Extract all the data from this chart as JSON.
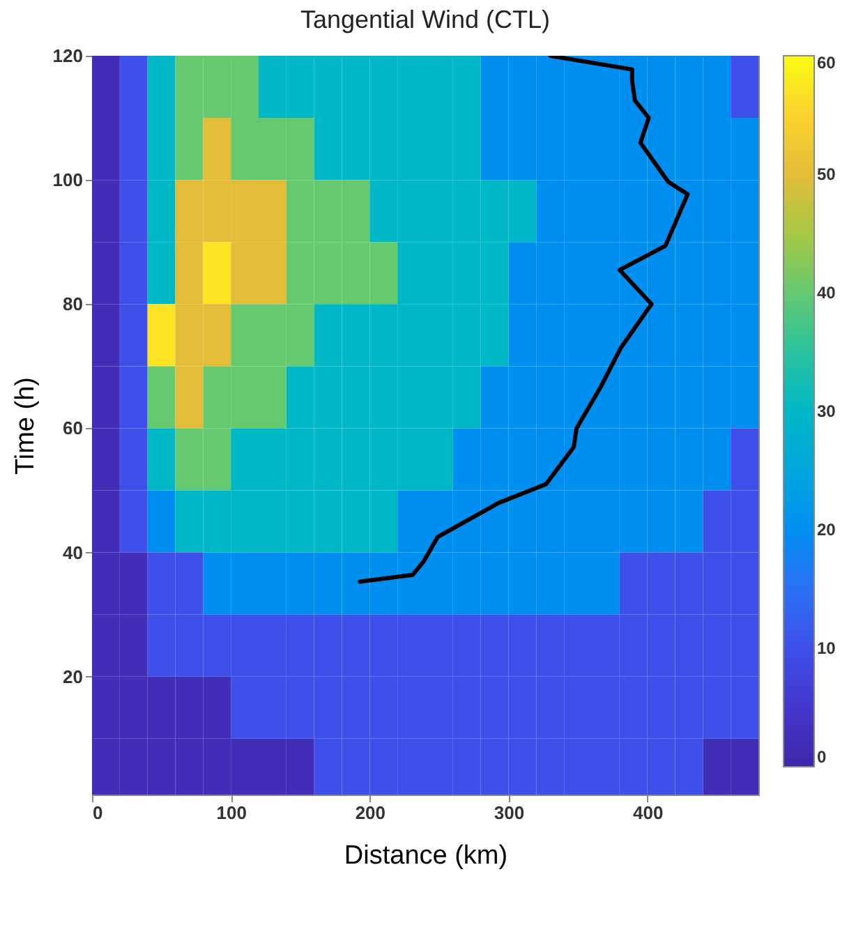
{
  "chart_data": {
    "type": "heatmap",
    "title": "Tangential Wind (CTL)",
    "xlabel": "Distance (km)",
    "ylabel": "Time (h)",
    "x": [
      10,
      30,
      50,
      70,
      90,
      110,
      130,
      150,
      170,
      190,
      210,
      230,
      250,
      270,
      290,
      310,
      330,
      350,
      370,
      390,
      410,
      430,
      450,
      470
    ],
    "y": [
      115,
      105,
      95,
      85,
      75,
      65,
      55,
      45,
      35,
      25,
      15,
      5
    ],
    "cells": [
      [
        2,
        10,
        30,
        40,
        40,
        40,
        30,
        30,
        30,
        30,
        30,
        30,
        30,
        30,
        20,
        20,
        20,
        20,
        20,
        20,
        20,
        20,
        20,
        10
      ],
      [
        2,
        10,
        30,
        40,
        50,
        40,
        40,
        40,
        30,
        30,
        30,
        30,
        30,
        30,
        20,
        20,
        20,
        20,
        20,
        20,
        20,
        20,
        20,
        20
      ],
      [
        2,
        10,
        30,
        50,
        50,
        50,
        50,
        40,
        40,
        40,
        30,
        30,
        30,
        30,
        30,
        30,
        20,
        20,
        20,
        20,
        20,
        20,
        20,
        20
      ],
      [
        2,
        10,
        30,
        50,
        57,
        50,
        50,
        40,
        40,
        40,
        40,
        30,
        30,
        30,
        30,
        20,
        20,
        20,
        20,
        20,
        20,
        20,
        20,
        20
      ],
      [
        2,
        10,
        57,
        50,
        50,
        40,
        40,
        40,
        30,
        30,
        30,
        30,
        30,
        30,
        30,
        20,
        20,
        20,
        20,
        20,
        20,
        20,
        20,
        20
      ],
      [
        2,
        10,
        40,
        50,
        40,
        40,
        40,
        30,
        30,
        30,
        30,
        30,
        30,
        30,
        20,
        20,
        20,
        20,
        20,
        20,
        20,
        20,
        20,
        20
      ],
      [
        2,
        10,
        30,
        40,
        40,
        30,
        30,
        30,
        30,
        30,
        30,
        30,
        30,
        20,
        20,
        20,
        20,
        20,
        20,
        20,
        20,
        20,
        20,
        10
      ],
      [
        2,
        10,
        20,
        30,
        30,
        30,
        30,
        30,
        30,
        30,
        30,
        20,
        20,
        20,
        20,
        20,
        20,
        20,
        20,
        20,
        20,
        20,
        10,
        10
      ],
      [
        2,
        2,
        10,
        10,
        20,
        20,
        20,
        20,
        20,
        20,
        20,
        20,
        20,
        20,
        20,
        20,
        20,
        20,
        20,
        10,
        10,
        10,
        10,
        10
      ],
      [
        2,
        2,
        10,
        10,
        10,
        10,
        10,
        10,
        10,
        10,
        10,
        10,
        10,
        10,
        10,
        10,
        10,
        10,
        10,
        10,
        10,
        10,
        10,
        10
      ],
      [
        2,
        2,
        2,
        2,
        2,
        10,
        10,
        10,
        10,
        10,
        10,
        10,
        10,
        10,
        10,
        10,
        10,
        10,
        10,
        10,
        10,
        10,
        10,
        10
      ],
      [
        2,
        2,
        2,
        2,
        2,
        2,
        2,
        2,
        10,
        10,
        10,
        10,
        10,
        10,
        10,
        10,
        10,
        10,
        10,
        10,
        10,
        10,
        2,
        2
      ]
    ],
    "clim": [
      0,
      60
    ],
    "cticks": [
      0,
      10,
      20,
      30,
      40,
      50,
      60
    ],
    "xlim": [
      0,
      480
    ],
    "xticks": [
      0,
      100,
      200,
      300,
      400
    ],
    "ylim": [
      1,
      120
    ],
    "yticks": [
      20,
      40,
      60,
      80,
      100,
      120
    ],
    "series": [
      {
        "type": "line",
        "color": "#000000",
        "x": [
          193,
          231,
          239,
          249,
          293,
          327,
          347,
          349,
          366,
          381,
          403,
          380,
          413,
          429,
          415,
          395,
          401,
          391,
          389,
          389,
          330
        ],
        "values": [
          35.3,
          36.4,
          38.6,
          42.5,
          48,
          51,
          57,
          60,
          66.5,
          73,
          80,
          85.5,
          89.4,
          97.7,
          99.7,
          106,
          110,
          112.8,
          116,
          117.8,
          120
        ]
      }
    ]
  }
}
